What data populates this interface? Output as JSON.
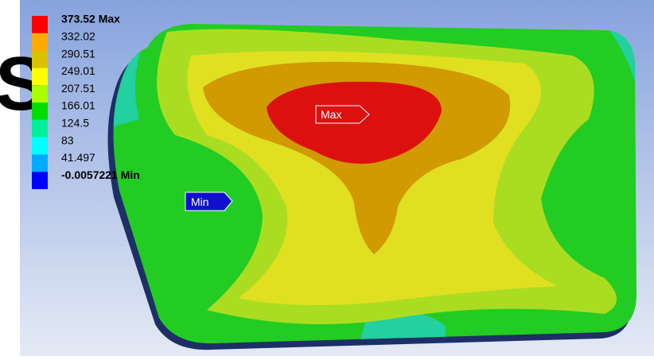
{
  "edge_text": "S",
  "legend": {
    "entries": [
      {
        "label": "373.52 Max",
        "color": "#ff0000"
      },
      {
        "label": "332.02",
        "color": "#ffaa00"
      },
      {
        "label": "290.51",
        "color": "#d9c200"
      },
      {
        "label": "249.01",
        "color": "#ffff00"
      },
      {
        "label": "207.51",
        "color": "#aaff00"
      },
      {
        "label": "166.01",
        "color": "#00dd00"
      },
      {
        "label": "124.5",
        "color": "#00ee99"
      },
      {
        "label": "83",
        "color": "#00ffff"
      },
      {
        "label": "41.497",
        "color": "#00aaff"
      },
      {
        "label": "-0.0057221 Min",
        "color": "#0000ff"
      }
    ]
  },
  "markers": {
    "max": "Max",
    "min": "Min"
  }
}
